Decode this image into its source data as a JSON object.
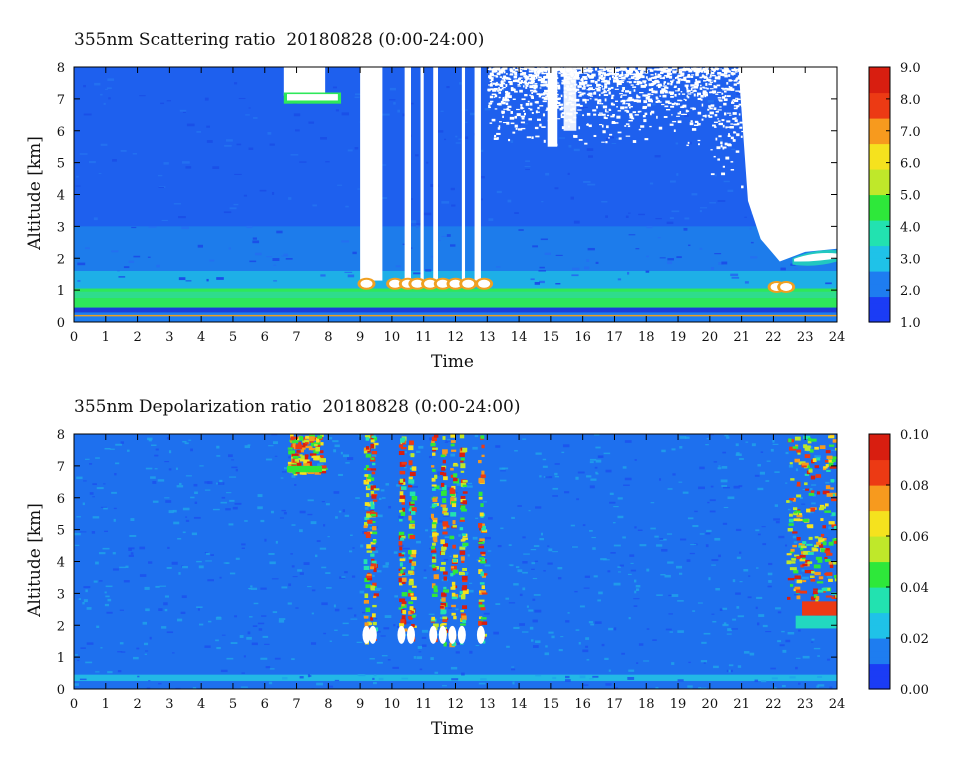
{
  "chart_data": [
    {
      "type": "heatmap",
      "title": "355nm Scattering ratio  20180828 (0:00-24:00)",
      "xlabel": "Time",
      "ylabel": "Altitude [km]",
      "xlim": [
        0,
        24
      ],
      "ylim": [
        0,
        8
      ],
      "x_ticks": [
        "0",
        "1",
        "2",
        "3",
        "4",
        "5",
        "6",
        "7",
        "8",
        "9",
        "10",
        "11",
        "12",
        "13",
        "14",
        "15",
        "16",
        "17",
        "18",
        "19",
        "20",
        "21",
        "22",
        "23",
        "24"
      ],
      "y_ticks": [
        "0",
        "1",
        "2",
        "3",
        "4",
        "5",
        "6",
        "7",
        "8"
      ],
      "colorbar": {
        "ticks": [
          "1.0",
          "2.0",
          "3.0",
          "4.0",
          "5.0",
          "6.0",
          "7.0",
          "8.0",
          "9.0"
        ],
        "min": 1.0,
        "max": 9.0
      },
      "colormap": [
        "#1b3cf5",
        "#1e7df0",
        "#1fc2e8",
        "#22e2b0",
        "#2ee83a",
        "#bfe82a",
        "#f5e21e",
        "#f79a1e",
        "#ec3a14",
        "#d81e10"
      ],
      "features": {
        "boundary_layer_top_km": 1.0,
        "surface_line_km": 0.2,
        "cirrus_cloud": {
          "t_start": 6.6,
          "t_end": 8.4,
          "alt_km": 7.0
        },
        "cloud_gaps_hours": [
          [
            9.0,
            9.7
          ],
          [
            10.4,
            10.6
          ],
          [
            10.9,
            11.0
          ],
          [
            11.3,
            11.45
          ],
          [
            12.2,
            12.3
          ],
          [
            12.6,
            12.8
          ]
        ],
        "low_clouds_hours": [
          9.2,
          10.1,
          10.5,
          10.8,
          11.2,
          11.6,
          12.0,
          12.4,
          12.9,
          22.1,
          22.4
        ],
        "evening_cloud": {
          "t_start": 22.6,
          "t_end": 24.0,
          "alt_km": 2.1
        }
      }
    },
    {
      "type": "heatmap",
      "title": "355nm Depolarization ratio  20180828 (0:00-24:00)",
      "xlabel": "Time",
      "ylabel": "Altitude [km]",
      "xlim": [
        0,
        24
      ],
      "ylim": [
        0,
        8
      ],
      "x_ticks": [
        "0",
        "1",
        "2",
        "3",
        "4",
        "5",
        "6",
        "7",
        "8",
        "9",
        "10",
        "11",
        "12",
        "13",
        "14",
        "15",
        "16",
        "17",
        "18",
        "19",
        "20",
        "21",
        "22",
        "23",
        "24"
      ],
      "y_ticks": [
        "0",
        "1",
        "2",
        "3",
        "4",
        "5",
        "6",
        "7",
        "8"
      ],
      "colorbar": {
        "ticks": [
          "0.00",
          "0.02",
          "0.04",
          "0.06",
          "0.08",
          "0.10"
        ],
        "min": 0.0,
        "max": 0.1
      },
      "colormap": [
        "#1b3cf5",
        "#1e7df0",
        "#1fc2e8",
        "#22e2b0",
        "#2ee83a",
        "#bfe82a",
        "#f5e21e",
        "#f79a1e",
        "#ec3a14",
        "#d81e10"
      ],
      "features": {
        "high_depol_columns_hours": [
          9.2,
          9.4,
          10.3,
          10.6,
          11.3,
          11.6,
          11.9,
          12.2,
          12.8
        ],
        "cirrus_cloud": {
          "t_start": 6.7,
          "t_end": 7.8,
          "alt_km": 7.4
        },
        "evening_layer": {
          "t_start": 22.4,
          "t_end": 24.0,
          "alt_km": 2.5
        }
      }
    }
  ]
}
